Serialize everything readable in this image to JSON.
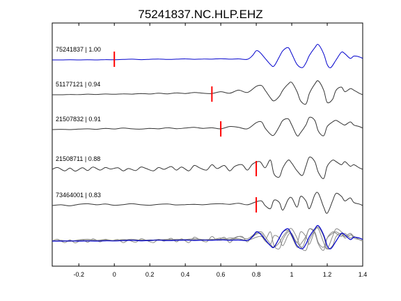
{
  "chart_data": {
    "type": "line",
    "title": "75241837.NC.HLP.EHZ",
    "xlabel": "",
    "ylabel": "",
    "xlim": [
      -0.35,
      1.4
    ],
    "xticks": [
      -0.2,
      0,
      0.2,
      0.4,
      0.6,
      0.8,
      1,
      1.2,
      1.4
    ],
    "xtick_labels": [
      "-0.2",
      "0",
      "0.2",
      "0.4",
      "0.6",
      "0.8",
      "1",
      "1.2",
      "1.4"
    ],
    "grid": false,
    "colors": {
      "reference": "#0000cc",
      "other": "#333333",
      "pick": "#ff0000",
      "stack_other": "#888888"
    },
    "traces": [
      {
        "label": "75241837 | 1.00",
        "pick": 0.0,
        "color": "#0000cc",
        "x": [
          -0.35,
          -0.3,
          -0.25,
          -0.2,
          -0.15,
          -0.1,
          -0.05,
          0,
          0.05,
          0.1,
          0.15,
          0.2,
          0.25,
          0.3,
          0.35,
          0.4,
          0.45,
          0.5,
          0.55,
          0.6,
          0.65,
          0.7,
          0.75,
          0.78,
          0.8,
          0.82,
          0.85,
          0.88,
          0.9,
          0.93,
          0.95,
          0.98,
          1.0,
          1.03,
          1.06,
          1.08,
          1.1,
          1.13,
          1.15,
          1.18,
          1.2,
          1.22,
          1.25,
          1.28,
          1.3,
          1.33,
          1.35,
          1.38,
          1.4
        ],
        "y": [
          0,
          0,
          0.01,
          0,
          0.01,
          0,
          0.02,
          0.01,
          0.03,
          0.05,
          0.02,
          0.04,
          0.06,
          0.03,
          0.05,
          0.07,
          0.04,
          0.06,
          0.05,
          0.08,
          0.05,
          0.07,
          0.04,
          0.3,
          0.6,
          0.5,
          0.1,
          -0.3,
          -0.4,
          0.2,
          0.6,
          0.8,
          0.4,
          -0.3,
          -0.5,
          -0.2,
          0.3,
          0.8,
          1.0,
          0.4,
          -0.3,
          -0.5,
          0,
          0.5,
          0.4,
          0.1,
          0.25,
          0.2,
          0.1
        ]
      },
      {
        "label": "51177121 | 0.94",
        "pick": 0.55,
        "color": "#333333",
        "x": [
          -0.35,
          -0.3,
          -0.25,
          -0.2,
          -0.15,
          -0.1,
          -0.05,
          0,
          0.05,
          0.1,
          0.15,
          0.2,
          0.25,
          0.3,
          0.35,
          0.4,
          0.45,
          0.5,
          0.55,
          0.6,
          0.65,
          0.7,
          0.75,
          0.8,
          0.83,
          0.85,
          0.88,
          0.9,
          0.93,
          0.95,
          0.98,
          1.0,
          1.03,
          1.05,
          1.08,
          1.1,
          1.13,
          1.15,
          1.18,
          1.2,
          1.23,
          1.25,
          1.28,
          1.3,
          1.33,
          1.35,
          1.38,
          1.4
        ],
        "y": [
          0,
          0,
          0.02,
          0.01,
          0.04,
          0.02,
          0.05,
          0.03,
          0.06,
          0.04,
          0.08,
          0.05,
          0.1,
          0.06,
          0.12,
          0.08,
          0.15,
          0.1,
          0.08,
          0.2,
          0.1,
          0.3,
          0.15,
          0.55,
          0.6,
          0.3,
          -0.2,
          -0.4,
          -0.1,
          0.3,
          0.7,
          0.8,
          0.2,
          -0.4,
          -0.6,
          0.1,
          0.7,
          0.9,
          0.3,
          -0.5,
          -0.3,
          0.3,
          0.5,
          0.2,
          0.4,
          0.3,
          0.1,
          0
        ]
      },
      {
        "label": "21507832 | 0.91",
        "pick": 0.6,
        "color": "#333333",
        "x": [
          -0.35,
          -0.3,
          -0.25,
          -0.2,
          -0.15,
          -0.1,
          -0.05,
          0,
          0.05,
          0.1,
          0.15,
          0.2,
          0.25,
          0.3,
          0.35,
          0.4,
          0.45,
          0.5,
          0.55,
          0.6,
          0.65,
          0.7,
          0.75,
          0.8,
          0.83,
          0.85,
          0.88,
          0.9,
          0.93,
          0.95,
          0.98,
          1.0,
          1.03,
          1.05,
          1.08,
          1.1,
          1.13,
          1.15,
          1.18,
          1.2,
          1.23,
          1.25,
          1.28,
          1.3,
          1.33,
          1.35,
          1.38,
          1.4
        ],
        "y": [
          0,
          0.02,
          0,
          0.03,
          0.05,
          0.02,
          0.08,
          0.04,
          0.1,
          0.05,
          0.03,
          0.08,
          0.05,
          0.12,
          0.06,
          0.1,
          0.15,
          0.08,
          0.12,
          0.05,
          0.2,
          0.15,
          0.05,
          0.45,
          0.5,
          0.1,
          -0.3,
          -0.35,
          0.2,
          0.6,
          0.7,
          0.3,
          -0.4,
          -0.2,
          0.3,
          0.8,
          0.6,
          -0.1,
          -0.4,
          0.2,
          0.5,
          0.6,
          0.4,
          0.3,
          0.5,
          0.3,
          0.2,
          0.1
        ]
      },
      {
        "label": "21508711 | 0.88",
        "pick": 0.8,
        "color": "#333333",
        "x": [
          -0.35,
          -0.32,
          -0.28,
          -0.25,
          -0.22,
          -0.18,
          -0.15,
          -0.12,
          -0.08,
          -0.05,
          -0.02,
          0.02,
          0.05,
          0.08,
          0.12,
          0.15,
          0.18,
          0.22,
          0.25,
          0.28,
          0.32,
          0.35,
          0.38,
          0.42,
          0.45,
          0.48,
          0.52,
          0.55,
          0.58,
          0.62,
          0.65,
          0.68,
          0.72,
          0.75,
          0.78,
          0.82,
          0.85,
          0.88,
          0.9,
          0.93,
          0.95,
          0.98,
          1.0,
          1.03,
          1.06,
          1.08,
          1.1,
          1.13,
          1.15,
          1.18,
          1.2,
          1.23,
          1.25,
          1.28,
          1.3,
          1.33,
          1.35,
          1.38,
          1.4
        ],
        "y": [
          0,
          0.12,
          -0.1,
          0.08,
          -0.12,
          0.1,
          -0.08,
          0.15,
          -0.05,
          0.12,
          0.02,
          0.1,
          -0.1,
          0.05,
          -0.08,
          0.15,
          0.05,
          -0.1,
          0.12,
          0,
          0.18,
          -0.05,
          0.15,
          -0.1,
          0.25,
          0.1,
          -0.05,
          0.3,
          0.05,
          0.25,
          -0.1,
          0.2,
          0.3,
          -0.05,
          0.35,
          0.5,
          0.1,
          0.6,
          -0.3,
          -0.5,
          0.1,
          0.6,
          0.4,
          -0.1,
          -0.4,
          0.2,
          0.8,
          0.5,
          -0.2,
          -0.6,
          0.2,
          0.6,
          0.5,
          0.3,
          0.5,
          0.2,
          0.3,
          0.1,
          0
        ]
      },
      {
        "label": "73464001 | 0.83",
        "pick": 0.8,
        "color": "#333333",
        "x": [
          -0.35,
          -0.3,
          -0.25,
          -0.2,
          -0.15,
          -0.1,
          -0.05,
          0,
          0.05,
          0.1,
          0.15,
          0.2,
          0.25,
          0.3,
          0.35,
          0.4,
          0.45,
          0.5,
          0.55,
          0.6,
          0.65,
          0.7,
          0.75,
          0.8,
          0.83,
          0.85,
          0.88,
          0.9,
          0.93,
          0.95,
          0.98,
          1.0,
          1.03,
          1.05,
          1.08,
          1.1,
          1.13,
          1.15,
          1.18,
          1.2,
          1.23,
          1.25,
          1.28,
          1.3,
          1.33,
          1.35,
          1.38,
          1.4
        ],
        "y": [
          0,
          0.05,
          -0.02,
          0.08,
          0.12,
          0.05,
          0.1,
          0.02,
          0.06,
          0.12,
          0.05,
          0.02,
          0.08,
          0.1,
          0.04,
          0.06,
          0.08,
          0.05,
          0.1,
          0.12,
          0.08,
          0.15,
          0.05,
          0.25,
          0.3,
          0,
          -0.2,
          0.35,
          0.2,
          -0.3,
          0.4,
          0.5,
          -0.1,
          0.6,
          0.3,
          -0.2,
          0.7,
          0.8,
          -0.1,
          -0.5,
          0.3,
          0.8,
          0.6,
          0.3,
          0.5,
          0.2,
          0.1,
          0
        ]
      }
    ]
  }
}
